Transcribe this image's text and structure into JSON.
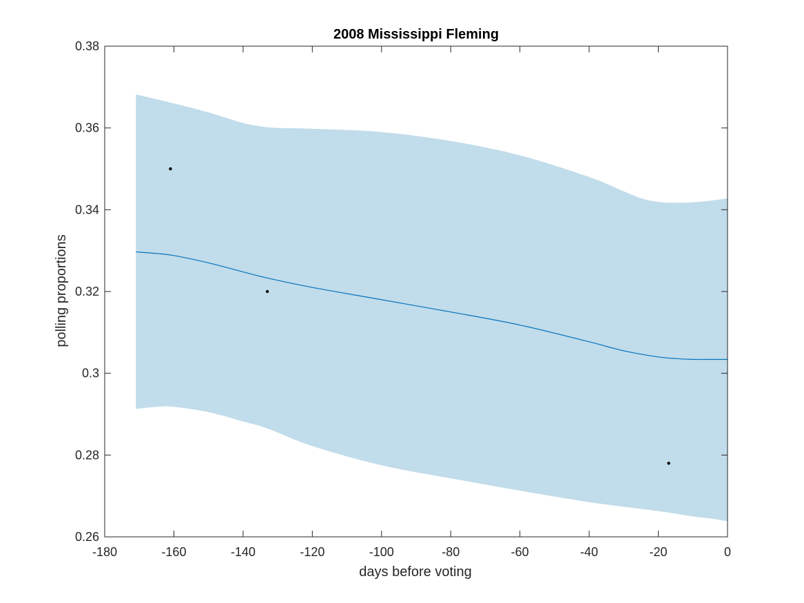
{
  "chart_data": {
    "type": "line",
    "title": "2008 Mississippi Fleming",
    "xlabel": "days before voting",
    "ylabel": "polling proportions",
    "xlim": [
      -180,
      0
    ],
    "ylim": [
      0.26,
      0.38
    ],
    "x_ticks": [
      -180,
      -160,
      -140,
      -120,
      -100,
      -80,
      -60,
      -40,
      -20,
      0
    ],
    "x_tick_labels": [
      "-180",
      "-160",
      "-140",
      "-120",
      "-100",
      "-80",
      "-60",
      "-40",
      "-20",
      "0"
    ],
    "y_ticks": [
      0.26,
      0.28,
      0.3,
      0.32,
      0.34,
      0.36,
      0.38
    ],
    "y_tick_labels": [
      "0.26",
      "0.28",
      "0.3",
      "0.32",
      "0.34",
      "0.36",
      "0.38"
    ],
    "grid": false,
    "colors": {
      "band": "#c1dcea",
      "line": "#0072bd",
      "points": "#000000",
      "axis": "#262626"
    },
    "mean_line": {
      "x": [
        -171,
        -165,
        -160,
        -150,
        -140,
        -133,
        -120,
        -100,
        -80,
        -60,
        -40,
        -30,
        -20,
        -15,
        -10,
        -5,
        0
      ],
      "y": [
        0.3297,
        0.3293,
        0.3288,
        0.327,
        0.3248,
        0.3233,
        0.321,
        0.318,
        0.315,
        0.3118,
        0.3077,
        0.3055,
        0.304,
        0.3036,
        0.3034,
        0.3034,
        0.3034
      ]
    },
    "band_upper": {
      "x": [
        -171,
        -160,
        -150,
        -140,
        -135,
        -130,
        -120,
        -100,
        -80,
        -60,
        -40,
        -30,
        -25,
        -20,
        -15,
        -10,
        -5,
        0
      ],
      "y": [
        0.3682,
        0.366,
        0.3638,
        0.3612,
        0.3604,
        0.36,
        0.3598,
        0.359,
        0.3568,
        0.3533,
        0.348,
        0.3445,
        0.3428,
        0.3419,
        0.3417,
        0.3418,
        0.3422,
        0.3428
      ]
    },
    "band_lower": {
      "x": [
        -171,
        -165,
        -160,
        -150,
        -140,
        -133,
        -120,
        -100,
        -80,
        -60,
        -40,
        -20,
        -10,
        -5,
        0
      ],
      "y": [
        0.2913,
        0.2918,
        0.2918,
        0.2905,
        0.2882,
        0.2865,
        0.2822,
        0.2775,
        0.2743,
        0.2713,
        0.2685,
        0.2663,
        0.265,
        0.2645,
        0.2638
      ]
    },
    "points": {
      "x": [
        -161,
        -133,
        -17
      ],
      "y": [
        0.35,
        0.32,
        0.278
      ]
    }
  }
}
